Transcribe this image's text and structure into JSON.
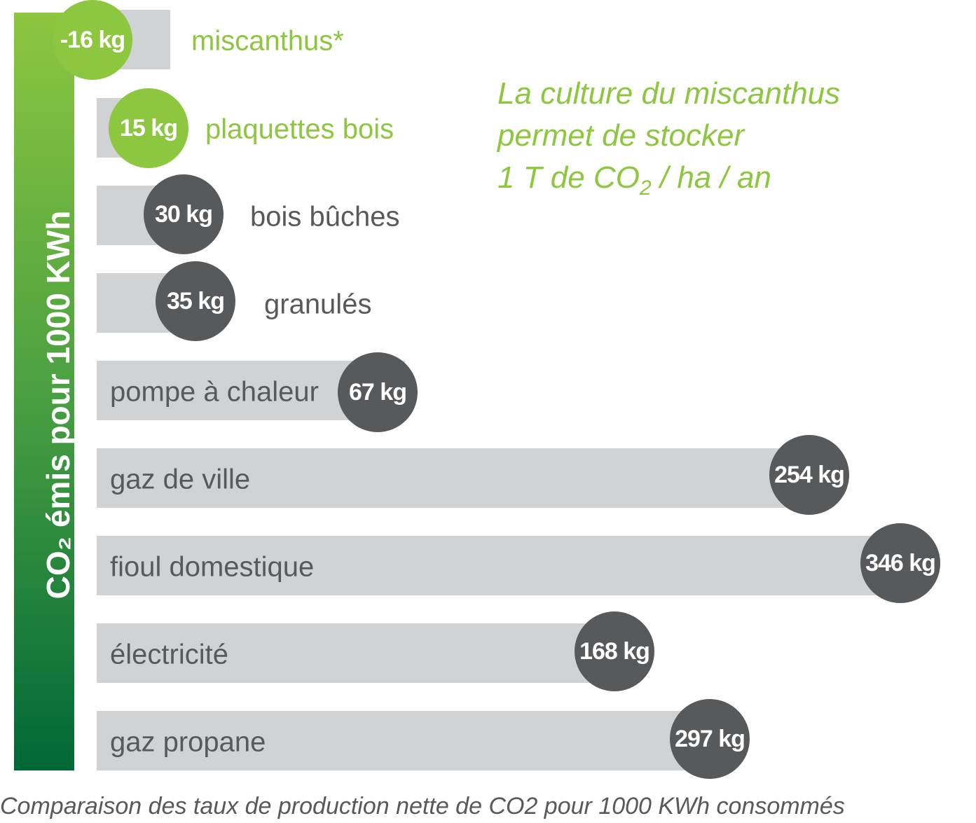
{
  "chart_data": {
    "type": "bar",
    "orientation": "horizontal",
    "ylabel": "CO₂ émis pour 1000 KWh",
    "caption": "Comparaison des taux de production nette de CO2 pour 1000 KWh consommés",
    "unit": "kg",
    "categories": [
      "miscanthus*",
      "plaquettes bois",
      "bois bûches",
      "granulés",
      "pompe à chaleur",
      "gaz de ville",
      "fioul domestique",
      "électricité",
      "gaz propane"
    ],
    "values": [
      -16,
      15,
      30,
      35,
      67,
      254,
      346,
      168,
      297
    ],
    "data_labels": [
      "-16 kg",
      "15 kg",
      "30 kg",
      "35 kg",
      "67 kg",
      "254 kg",
      "346 kg",
      "168 kg",
      "297 kg"
    ],
    "highlight": [
      true,
      true,
      false,
      false,
      false,
      false,
      false,
      false,
      false
    ]
  },
  "annotation": {
    "line1": "La culture du miscanthus",
    "line2": "permet de stocker",
    "line3_a": "1 T de CO",
    "line3_sub": "2",
    "line3_b": " / ha / an"
  },
  "colors": {
    "green": "#8dc63f",
    "dark": "#58595b",
    "bar": "#d1d2d4",
    "axis_top": "#8dc63f",
    "axis_bottom": "#006837"
  }
}
